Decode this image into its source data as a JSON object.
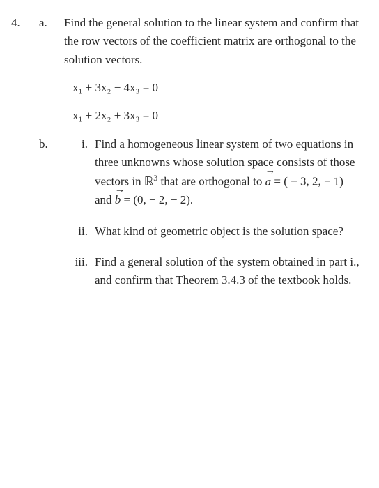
{
  "problem": {
    "number": "4.",
    "part_a": {
      "label": "a.",
      "text": "Find the general solution to the linear system and confirm that the row vectors of the coefficient matrix are orthogonal to the solution vectors.",
      "eq1": "x₁ + 3x₂ − 4x₃ = 0",
      "eq2": "x₁ + 2x₂ + 3x₃ = 0"
    },
    "part_b": {
      "label": "b.",
      "i": {
        "label": "i.",
        "text_before": "Find a homogeneous linear system of two equations in three unknowns whose solution space consists of those vectors in ℝ",
        "exp": "3",
        "text_mid": " that are orthogonal to ",
        "vec_a": "a",
        "vec_a_val": " = ( − 3, 2, − 1) and ",
        "vec_b": "b",
        "vec_b_val": " = (0, − 2, − 2)."
      },
      "ii": {
        "label": "ii.",
        "text": "What kind of geometric object is the solution space?"
      },
      "iii": {
        "label": "iii.",
        "text": "Find a general solution of the system obtained in part i., and confirm that Theorem 3.4.3 of the textbook holds."
      }
    }
  }
}
